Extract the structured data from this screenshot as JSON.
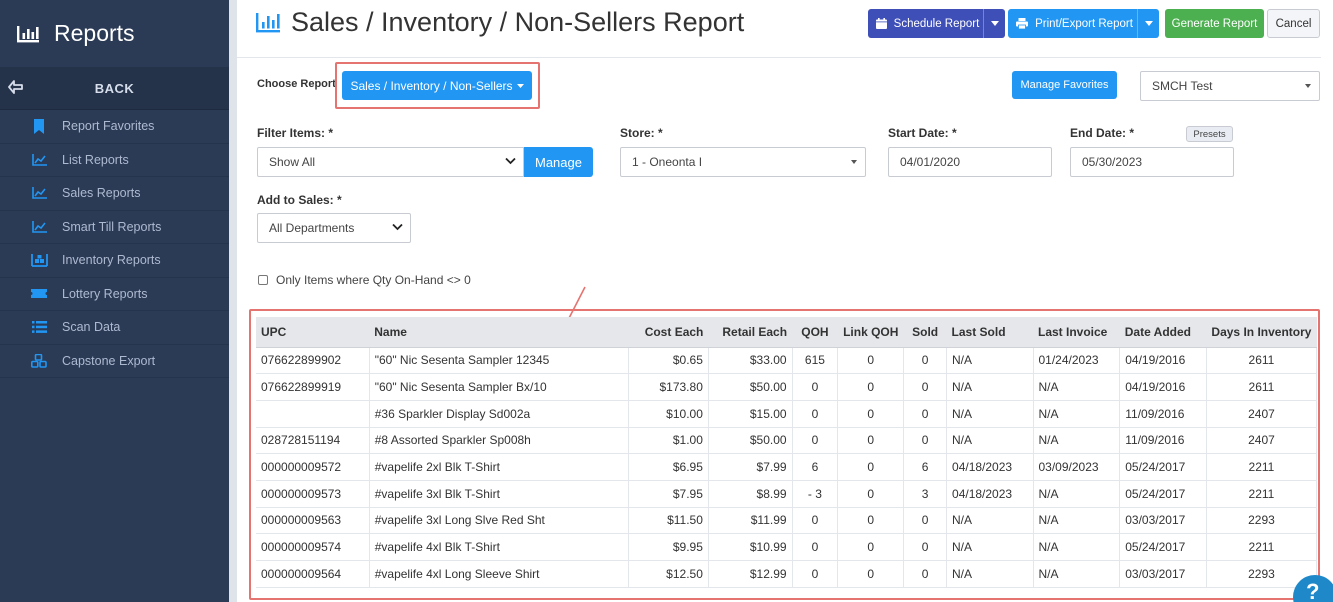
{
  "sidebar": {
    "title": "Reports",
    "back_label": "BACK",
    "items": [
      {
        "label": "Report Favorites",
        "icon": "bookmark-icon"
      },
      {
        "label": "List Reports",
        "icon": "line-chart-icon"
      },
      {
        "label": "Sales Reports",
        "icon": "line-chart-icon"
      },
      {
        "label": "Smart Till Reports",
        "icon": "line-chart-icon"
      },
      {
        "label": "Inventory Reports",
        "icon": "warehouse-icon"
      },
      {
        "label": "Lottery Reports",
        "icon": "ticket-icon"
      },
      {
        "label": "Scan Data",
        "icon": "list-icon"
      },
      {
        "label": "Capstone Export",
        "icon": "cubes-icon"
      }
    ]
  },
  "header": {
    "title": "Sales / Inventory / Non-Sellers Report",
    "schedule_label": "Schedule Report",
    "print_label": "Print/Export Report",
    "generate_label": "Generate Report",
    "cancel_label": "Cancel"
  },
  "choose": {
    "label": "Choose Report",
    "button_label": "Sales / Inventory / Non-Sellers",
    "favorites_label": "Manage Favorites",
    "account_value": "SMCH Test"
  },
  "filters": {
    "filter_items_label": "Filter Items: *",
    "filter_items_value": "Show All",
    "manage_label": "Manage",
    "store_label": "Store: *",
    "store_value": "1 - Oneonta I",
    "start_date_label": "Start Date: *",
    "start_date_value": "04/01/2020",
    "end_date_label": "End Date: *",
    "end_date_value": "05/30/2023",
    "presets_label": "Presets",
    "add_to_sales_label": "Add to Sales: *",
    "add_to_sales_value": "All Departments",
    "only_qty_label": "Only Items where Qty On-Hand <> 0"
  },
  "table": {
    "columns": [
      "UPC",
      "Name",
      "Cost Each",
      "Retail Each",
      "QOH",
      "Link QOH",
      "Sold",
      "Last Sold",
      "Last Invoice",
      "Date Added",
      "Days In Inventory"
    ],
    "rows": [
      [
        "076622899902",
        "\"60\" Nic Sesenta Sampler 12345",
        "$0.65",
        "$33.00",
        "615",
        "0",
        "0",
        "N/A",
        "01/24/2023",
        "04/19/2016",
        "2611"
      ],
      [
        "076622899919",
        "\"60\" Nic Sesenta Sampler Bx/10",
        "$173.80",
        "$50.00",
        "0",
        "0",
        "0",
        "N/A",
        "N/A",
        "04/19/2016",
        "2611"
      ],
      [
        "",
        "#36 Sparkler Display Sd002a",
        "$10.00",
        "$15.00",
        "0",
        "0",
        "0",
        "N/A",
        "N/A",
        "11/09/2016",
        "2407"
      ],
      [
        "028728151194",
        "#8 Assorted Sparkler Sp008h",
        "$1.00",
        "$50.00",
        "0",
        "0",
        "0",
        "N/A",
        "N/A",
        "11/09/2016",
        "2407"
      ],
      [
        "000000009572",
        "#vapelife 2xl Blk T-Shirt",
        "$6.95",
        "$7.99",
        "6",
        "0",
        "6",
        "04/18/2023",
        "03/09/2023",
        "05/24/2017",
        "2211"
      ],
      [
        "000000009573",
        "#vapelife 3xl Blk T-Shirt",
        "$7.95",
        "$8.99",
        "- 3",
        "0",
        "3",
        "04/18/2023",
        "N/A",
        "05/24/2017",
        "2211"
      ],
      [
        "000000009563",
        "#vapelife 3xl Long Slve Red Sht",
        "$11.50",
        "$11.99",
        "0",
        "0",
        "0",
        "N/A",
        "N/A",
        "03/03/2017",
        "2293"
      ],
      [
        "000000009574",
        "#vapelife 4xl Blk T-Shirt",
        "$9.95",
        "$10.99",
        "0",
        "0",
        "0",
        "N/A",
        "N/A",
        "05/24/2017",
        "2211"
      ],
      [
        "000000009564",
        "#vapelife 4xl Long Sleeve Shirt",
        "$12.50",
        "$12.99",
        "0",
        "0",
        "0",
        "N/A",
        "N/A",
        "03/03/2017",
        "2293"
      ]
    ]
  },
  "colors": {
    "sidebar_bg": "#2b3a55",
    "primary": "#2196f3",
    "schedule": "#3e4fb8",
    "generate": "#4caf50",
    "highlight": "#e5736f"
  }
}
